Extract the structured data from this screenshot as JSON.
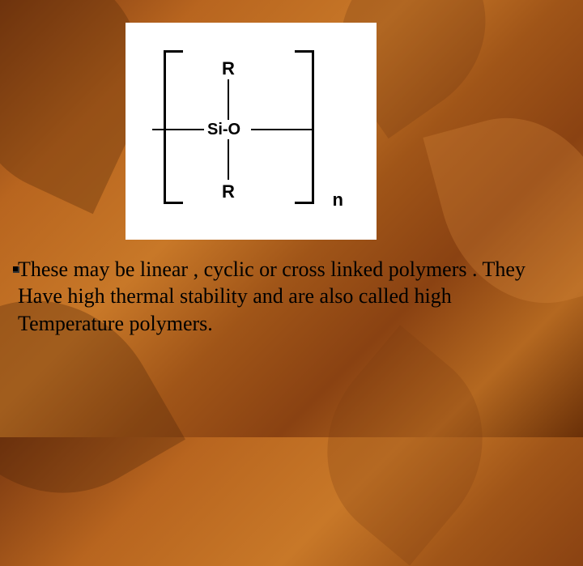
{
  "diagram": {
    "top_group": "R",
    "center_formula": "Si-O",
    "bottom_group": "R",
    "subscript": "n",
    "background_color": "#ffffff",
    "line_color": "#000000",
    "label_fontsize": 22,
    "formula_fontsize": 20
  },
  "caption": {
    "line1": "These may be linear , cyclic or cross linked polymers . They",
    "line2": "Have high thermal stability and are also called high",
    "line3": "Temperature polymers.",
    "fontsize": 26,
    "text_color": "#000000"
  },
  "slide_background": {
    "gradient_colors": [
      "#7a3810",
      "#b8651f",
      "#c87828",
      "#a05518",
      "#8a4212",
      "#b46820",
      "#6a3008"
    ]
  }
}
